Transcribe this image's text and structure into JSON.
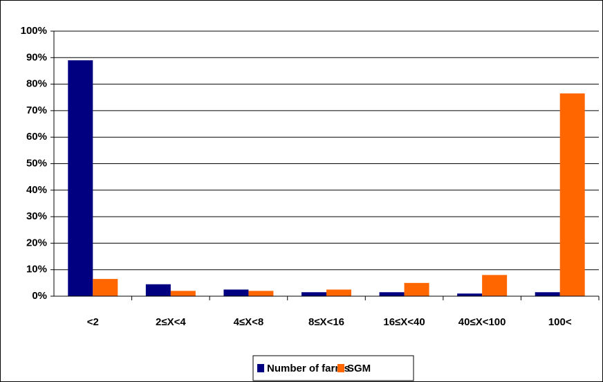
{
  "chart_data": {
    "type": "bar",
    "categories": [
      "<2",
      "2≤X<4",
      "4≤X<8",
      "8≤X<16",
      "16≤X<40",
      "40≤X<100",
      "100<"
    ],
    "series": [
      {
        "name": "Number of farms",
        "color": "#000080",
        "values": [
          89,
          4.5,
          2.5,
          1.5,
          1.5,
          1,
          1.5
        ]
      },
      {
        "name": "SGM",
        "color": "#ff6600",
        "values": [
          6.5,
          2,
          2,
          2.5,
          5,
          8,
          76.5
        ]
      }
    ],
    "ylim": [
      0,
      100
    ],
    "yticks": [
      {
        "value": 0,
        "label": "0%"
      },
      {
        "value": 10,
        "label": "10%"
      },
      {
        "value": 20,
        "label": "20%"
      },
      {
        "value": 30,
        "label": "30%"
      },
      {
        "value": 40,
        "label": "40%"
      },
      {
        "value": 50,
        "label": "50%"
      },
      {
        "value": 60,
        "label": "60%"
      },
      {
        "value": 70,
        "label": "70%"
      },
      {
        "value": 80,
        "label": "80%"
      },
      {
        "value": 90,
        "label": "90%"
      },
      {
        "value": 100,
        "label": "100%"
      }
    ],
    "grid": true
  }
}
